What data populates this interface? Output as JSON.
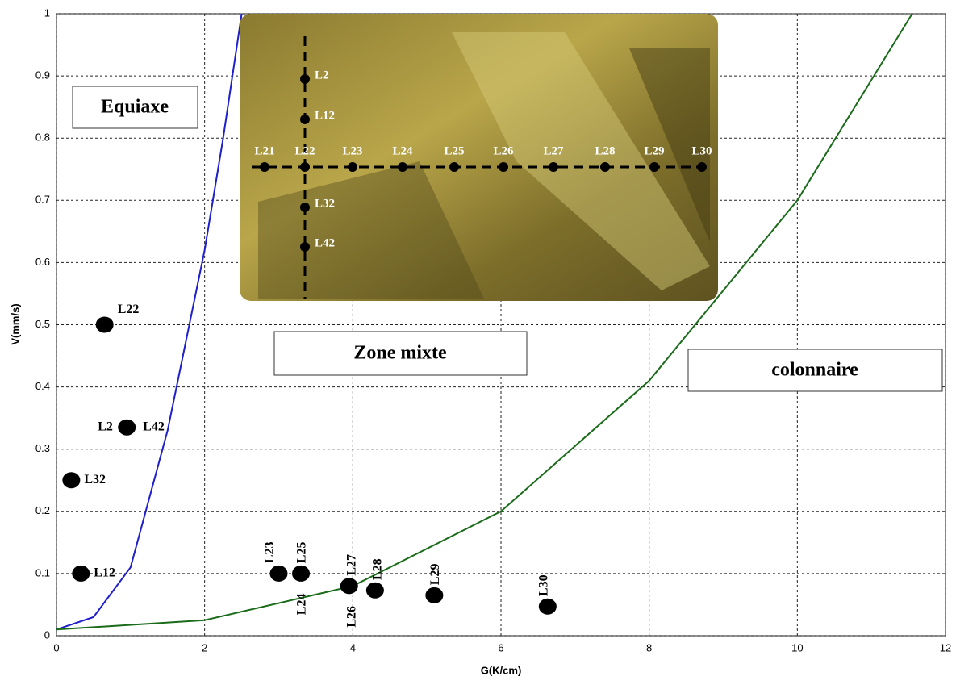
{
  "chart_data": {
    "type": "scatter",
    "xlabel": "G(K/cm)",
    "ylabel": "V(mm/s)",
    "xlim": [
      0,
      12
    ],
    "ylim": [
      0,
      1
    ],
    "xticks": [
      0,
      2,
      4,
      6,
      8,
      10,
      12
    ],
    "yticks": [
      0,
      0.1,
      0.2,
      0.3,
      0.4,
      0.5,
      0.6,
      0.7,
      0.8,
      0.9,
      1
    ],
    "grid": true,
    "curves": [
      {
        "color": "#1f1fcc",
        "x": [
          0,
          0.5,
          1,
          1.5,
          2,
          2.25,
          2.5
        ],
        "values": [
          0.01,
          0.03,
          0.11,
          0.33,
          0.62,
          0.8,
          1
        ]
      },
      {
        "color": "#1a6b1a",
        "x": [
          0,
          2,
          4,
          6,
          8,
          10,
          11.55
        ],
        "values": [
          0.01,
          0.025,
          0.08,
          0.2,
          0.41,
          0.7,
          1
        ]
      }
    ],
    "points": {
      "color": "#000000",
      "x": [
        0.65,
        0.95,
        0.2,
        0.33,
        3.0,
        3.3,
        3.95,
        4.3,
        5.1,
        6.63
      ],
      "values": [
        0.5,
        0.335,
        0.25,
        0.1,
        0.1,
        0.1,
        0.08,
        0.073,
        0.065,
        0.047
      ],
      "labels": [
        [
          "L22"
        ],
        [
          "L2",
          "L42"
        ],
        [
          "L32"
        ],
        [
          "L12"
        ],
        [
          "L23"
        ],
        [
          "L25",
          "L24"
        ],
        [
          "L27",
          "L26"
        ],
        [
          "L28"
        ],
        [
          "L29"
        ],
        [
          "L30"
        ]
      ]
    },
    "regions": [
      "Equiaxe",
      "Zone mixte",
      "colonnaire"
    ],
    "inset": {
      "horizontal": [
        "L21",
        "L22",
        "L23",
        "L24",
        "L25",
        "L26",
        "L27",
        "L28",
        "L29",
        "L30"
      ],
      "vertical": [
        "L2",
        "L12",
        "L32",
        "L42"
      ]
    }
  }
}
